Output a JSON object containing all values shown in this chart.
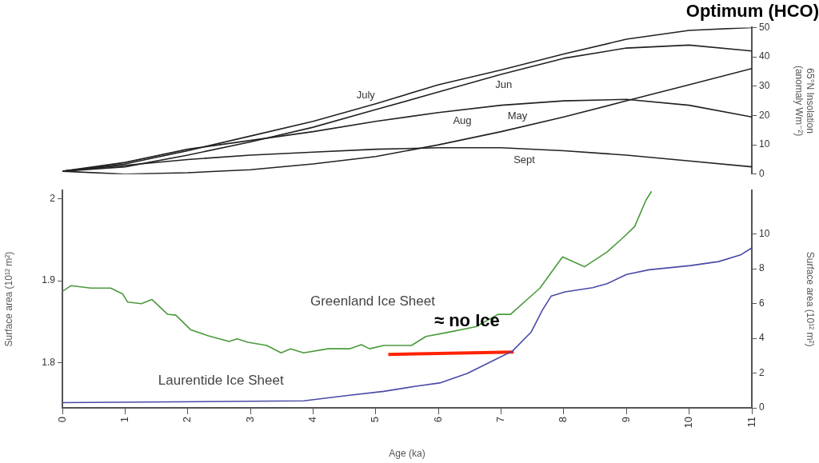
{
  "chart_data": [
    {
      "type": "line",
      "title": "Optimum (HCO)",
      "ylabel": "65°N Insolation\n(anomaly Wm⁻²)",
      "xlim": [
        0,
        11
      ],
      "ylim": [
        0,
        50
      ],
      "yticks": [
        0,
        10,
        20,
        30,
        40,
        50
      ],
      "tick_labels": "y",
      "grid": false,
      "legend": false,
      "marker": "none",
      "line_style": "solid",
      "x": [
        0,
        1,
        2,
        3,
        4,
        5,
        6,
        7,
        8,
        9,
        10,
        11
      ],
      "series": [
        {
          "name": "July",
          "color": "#222222",
          "values": [
            1,
            3.5,
            8,
            13,
            18,
            24,
            30.5,
            35.5,
            41,
            46,
            49,
            50
          ]
        },
        {
          "name": "Jun",
          "color": "#222222",
          "values": [
            1,
            2.5,
            6.5,
            11,
            16,
            22,
            28,
            34,
            39.5,
            43,
            44,
            42
          ]
        },
        {
          "name": "Aug",
          "color": "#222222",
          "values": [
            1,
            4,
            8.5,
            11.5,
            14.5,
            18,
            21,
            23.5,
            25,
            25.5,
            23.5,
            19.5
          ]
        },
        {
          "name": "May",
          "color": "#222222",
          "values": [
            1,
            0,
            0.5,
            1.5,
            3.5,
            6,
            10,
            14.5,
            19.5,
            25,
            30.5,
            36
          ]
        },
        {
          "name": "Sept",
          "color": "#222222",
          "values": [
            1,
            3,
            5,
            6.5,
            7.5,
            8.5,
            9,
            9,
            8,
            6.5,
            4.5,
            2.5
          ]
        }
      ]
    },
    {
      "type": "line",
      "xlabel": "Age (ka)",
      "ylabel": "Surface area (10¹² m²)",
      "y2label": "Surface area (10¹² m²)",
      "xlim": [
        0,
        11
      ],
      "xticks": [
        0,
        1,
        2,
        3,
        4,
        5,
        6,
        7,
        8,
        9,
        10,
        11
      ],
      "ylim": [
        1.745,
        2.01
      ],
      "yticks": [
        1.8,
        1.9,
        2
      ],
      "y2lim": [
        0,
        12.5
      ],
      "y2ticks": [
        0,
        2,
        4,
        6,
        8,
        10
      ],
      "grid": false,
      "legend": false,
      "marker": "none",
      "line_style": "solid",
      "annotations": [
        "≈ no Ice"
      ],
      "series": [
        {
          "name": "Greenland Ice Sheet",
          "color": "#4a9a3c",
          "x": [
            0,
            0.14,
            0.45,
            0.77,
            0.96,
            1.04,
            1.26,
            1.43,
            1.68,
            1.81,
            2.05,
            2.32,
            2.66,
            2.79,
            2.96,
            3.26,
            3.49,
            3.64,
            3.85,
            4.24,
            4.58,
            4.77,
            4.9,
            5.13,
            5.57,
            5.8,
            6.15,
            6.6,
            6.95,
            7.15,
            7.62,
            7.98,
            8.33,
            8.69,
            8.91,
            9.13,
            9.31,
            9.4
          ],
          "values": [
            1.887,
            1.894,
            1.891,
            1.891,
            1.884,
            1.874,
            1.872,
            1.877,
            1.859,
            1.858,
            1.84,
            1.833,
            1.826,
            1.829,
            1.825,
            1.821,
            1.812,
            1.817,
            1.812,
            1.817,
            1.817,
            1.822,
            1.817,
            1.821,
            1.821,
            1.832,
            1.837,
            1.844,
            1.859,
            1.859,
            1.891,
            1.929,
            1.917,
            1.935,
            1.95,
            1.966,
            1.998,
            2.009
          ]
        },
        {
          "name": "Laurentide Ice Sheet",
          "color": "#4a4aa8",
          "axis": "y2",
          "x": [
            0,
            3.85,
            4.53,
            5.13,
            5.64,
            6.02,
            6.46,
            6.91,
            7.18,
            7.48,
            7.66,
            7.8,
            8.02,
            8.46,
            8.69,
            9,
            9.36,
            10.02,
            10.47,
            10.83,
            11
          ],
          "values": [
            0.3,
            0.4,
            0.7,
            0.95,
            1.24,
            1.43,
            1.98,
            2.78,
            3.26,
            4.36,
            5.63,
            6.43,
            6.67,
            6.91,
            7.14,
            7.67,
            7.94,
            8.18,
            8.41,
            8.81,
            9.2
          ]
        },
        {
          "color": "#ff2200",
          "axis": "y2",
          "x": [
            5.2,
            7.2
          ],
          "values": [
            3.07,
            3.21
          ]
        }
      ]
    }
  ]
}
